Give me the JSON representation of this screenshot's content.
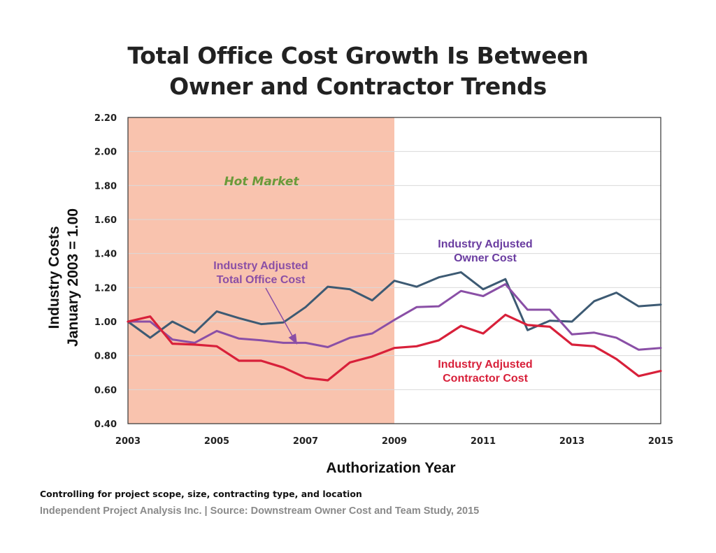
{
  "title": {
    "line1": "Total Office Cost Growth Is Between",
    "line2": "Owner and Contractor Trends"
  },
  "footnote": "Controlling for project scope, size, contracting type, and location",
  "credit": "Independent Project Analysis Inc. | Source: Downstream Owner Cost and Team Study, 2015",
  "colors": {
    "hot_market": "#f9c3ae",
    "hot_market_label": "#6a9a3a",
    "owner": "#3d5a73",
    "total_office": "#8a4fa6",
    "contractor": "#d8203a",
    "grid": "#d9d9d9",
    "annotation_owner": "#6a3ca0"
  },
  "chart_data": {
    "type": "line",
    "xlabel": "Authorization Year",
    "ylabel": "Industry Costs\nJanuary 2003 = 1.00",
    "ylim": [
      0.4,
      2.2
    ],
    "xlim": [
      2003,
      2015
    ],
    "x_ticks": [
      "2003",
      "2005",
      "2007",
      "2009",
      "2011",
      "2013",
      "2015"
    ],
    "y_ticks": [
      "0.40",
      "0.60",
      "0.80",
      "1.00",
      "1.20",
      "1.40",
      "1.60",
      "1.80",
      "2.00",
      "2.20"
    ],
    "grid": true,
    "shaded_region": {
      "label": "Hot Market",
      "from": 2003,
      "to": 2009
    },
    "x": [
      2003,
      2003.5,
      2004,
      2004.5,
      2005,
      2005.5,
      2006,
      2006.5,
      2007,
      2007.5,
      2008,
      2008.5,
      2009,
      2009.5,
      2010,
      2010.5,
      2011,
      2011.5,
      2012,
      2012.5,
      2013,
      2013.5,
      2014,
      2014.5,
      2015
    ],
    "series": [
      {
        "key": "owner",
        "values": [
          1.0,
          0.905,
          1.0,
          0.935,
          1.06,
          1.02,
          0.985,
          0.995,
          1.085,
          1.205,
          1.19,
          1.125,
          1.24,
          1.205,
          1.26,
          1.29,
          1.19,
          1.25,
          0.95,
          1.005,
          1.0,
          1.12,
          1.17,
          1.09,
          1.1
        ]
      },
      {
        "key": "total_office",
        "values": [
          1.0,
          1.0,
          0.895,
          0.875,
          0.945,
          0.9,
          0.89,
          0.875,
          0.875,
          0.85,
          0.905,
          0.93,
          1.01,
          1.085,
          1.09,
          1.18,
          1.15,
          1.22,
          1.07,
          1.07,
          0.925,
          0.935,
          0.905,
          0.835,
          0.845
        ]
      },
      {
        "key": "contractor",
        "values": [
          1.0,
          1.03,
          0.87,
          0.865,
          0.855,
          0.77,
          0.77,
          0.73,
          0.67,
          0.655,
          0.76,
          0.795,
          0.845,
          0.855,
          0.89,
          0.975,
          0.93,
          1.04,
          0.98,
          0.97,
          0.865,
          0.855,
          0.78,
          0.68,
          0.71
        ]
      }
    ],
    "annotations": {
      "owner": [
        "Industry Adjusted",
        "Owner Cost"
      ],
      "total_office": [
        "Industry Adjusted",
        "Total Office Cost"
      ],
      "contractor": [
        "Industry Adjusted",
        "Contractor Cost"
      ],
      "arrow_target": {
        "x": 2006.8,
        "y": 0.87
      }
    }
  }
}
